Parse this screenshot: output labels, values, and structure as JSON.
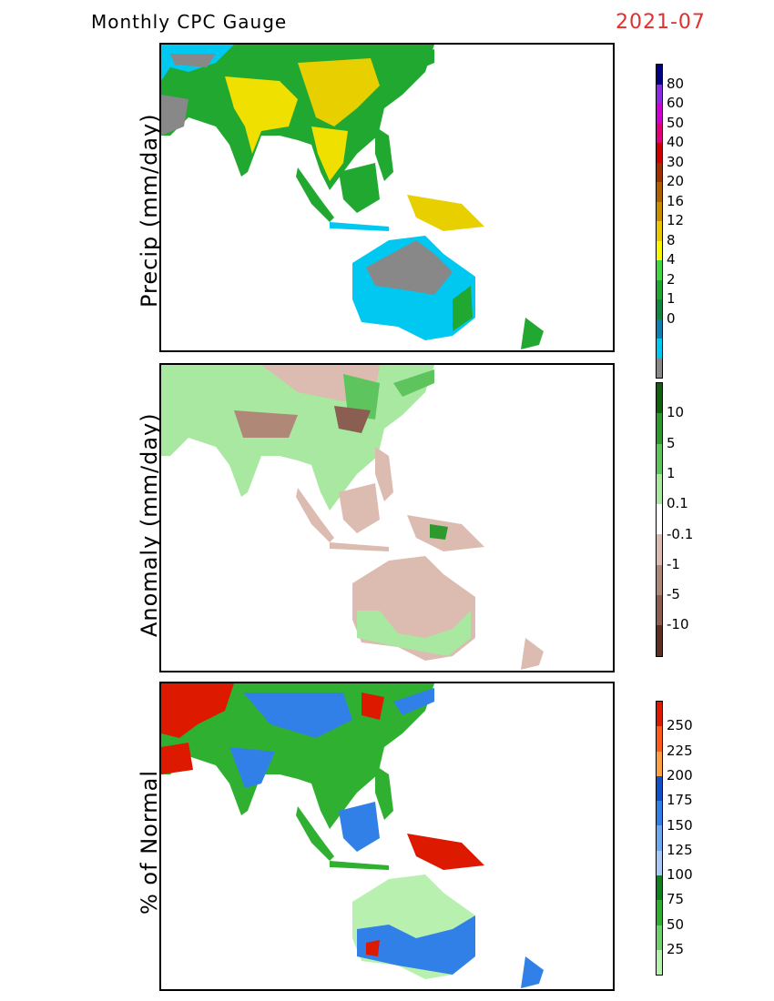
{
  "header": {
    "title": "Monthly CPC Gauge",
    "date": "2021-07",
    "date_color": "#e03030"
  },
  "panels": [
    {
      "ylabel": "Precip (mm/day)",
      "colors": [
        "#000080",
        "#8a2be2",
        "#d000d0",
        "#e0007a",
        "#cc0000",
        "#a03000",
        "#b06000",
        "#c89000",
        "#e8c800",
        "#f8f800",
        "#40d840",
        "#20a830",
        "#108840",
        "#1080b0",
        "#00c8f0",
        "#888888"
      ],
      "labels": [
        "80",
        "60",
        "50",
        "40",
        "30",
        "20",
        "16",
        "12",
        "8",
        "4",
        "2",
        "1",
        "0"
      ]
    },
    {
      "ylabel": "Anomaly (mm/day)",
      "colors": [
        "#106010",
        "#2e9a2e",
        "#5ec45e",
        "#a8e8a0",
        "#ffffff",
        "#dcbcb0",
        "#b08878",
        "#8a5e50",
        "#5a3020"
      ],
      "labels": [
        "10",
        "5",
        "1",
        "0.1",
        "-0.1",
        "-1",
        "-5",
        "-10"
      ]
    },
    {
      "ylabel": "% of Normal",
      "colors": [
        "#dd1a00",
        "#ff5a1a",
        "#ffa040",
        "#1050c8",
        "#3080e8",
        "#70a8f0",
        "#a8c8f8",
        "#108020",
        "#30b030",
        "#70d070",
        "#b8f0b0"
      ],
      "labels": [
        "250",
        "225",
        "200",
        "175",
        "150",
        "125",
        "100",
        "75",
        "50",
        "25"
      ]
    }
  ]
}
